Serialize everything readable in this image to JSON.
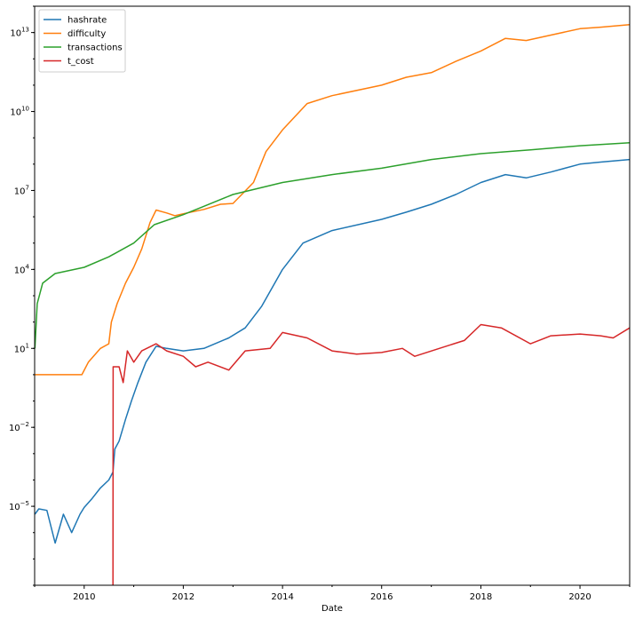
{
  "chart_data": {
    "type": "line",
    "title": "",
    "xlabel": "Date",
    "ylabel": "",
    "y_scale": "log",
    "xlim": [
      "2009-01-01",
      "2021-01-01"
    ],
    "ylim": [
      1e-08,
      100000000000000.0
    ],
    "grid": false,
    "legend_position": "top-left",
    "x_ticks": [
      "2010",
      "2012",
      "2014",
      "2016",
      "2018",
      "2020"
    ],
    "y_ticks": [
      {
        "base": "10",
        "exp": "−5",
        "value": 1e-05
      },
      {
        "base": "10",
        "exp": "−2",
        "value": 0.01
      },
      {
        "base": "10",
        "exp": "1",
        "value": 10
      },
      {
        "base": "10",
        "exp": "4",
        "value": 10000.0
      },
      {
        "base": "10",
        "exp": "7",
        "value": 10000000.0
      },
      {
        "base": "10",
        "exp": "10",
        "value": 10000000000.0
      },
      {
        "base": "10",
        "exp": "13",
        "value": 10000000000000.0
      }
    ],
    "series": [
      {
        "name": "hashrate",
        "color": "#1f77b4",
        "points": [
          [
            "2009-01-03",
            5e-06
          ],
          [
            "2009-02-01",
            8e-06
          ],
          [
            "2009-04-01",
            7e-06
          ],
          [
            "2009-06-01",
            4e-07
          ],
          [
            "2009-08-01",
            5e-06
          ],
          [
            "2009-10-01",
            1e-06
          ],
          [
            "2009-12-01",
            5e-06
          ],
          [
            "2010-01-01",
            9e-06
          ],
          [
            "2010-03-01",
            2e-05
          ],
          [
            "2010-05-01",
            5e-05
          ],
          [
            "2010-07-01",
            0.0001
          ],
          [
            "2010-08-01",
            0.0002
          ],
          [
            "2010-08-15",
            0.0015
          ],
          [
            "2010-09-15",
            0.003
          ],
          [
            "2010-11-01",
            0.02
          ],
          [
            "2010-12-15",
            0.1
          ],
          [
            "2011-02-01",
            0.5
          ],
          [
            "2011-04-01",
            3
          ],
          [
            "2011-06-15",
            12
          ],
          [
            "2011-09-01",
            10
          ],
          [
            "2012-01-01",
            8
          ],
          [
            "2012-06-01",
            10
          ],
          [
            "2012-12-01",
            25
          ],
          [
            "2013-04-01",
            60
          ],
          [
            "2013-08-01",
            400
          ],
          [
            "2014-01-01",
            10000
          ],
          [
            "2014-06-01",
            100000
          ],
          [
            "2015-01-01",
            300000
          ],
          [
            "2016-01-01",
            800000
          ],
          [
            "2016-07-01",
            1500000
          ],
          [
            "2017-01-01",
            3000000
          ],
          [
            "2017-07-01",
            7000000
          ],
          [
            "2018-01-01",
            20000000
          ],
          [
            "2018-07-01",
            40000000
          ],
          [
            "2018-12-01",
            30000000
          ],
          [
            "2019-06-01",
            50000000
          ],
          [
            "2020-01-01",
            100000000
          ],
          [
            "2020-06-01",
            120000000
          ],
          [
            "2021-01-01",
            150000000
          ]
        ]
      },
      {
        "name": "difficulty",
        "color": "#ff7f0e",
        "points": [
          [
            "2009-01-03",
            1
          ],
          [
            "2009-12-15",
            1
          ],
          [
            "2010-02-01",
            3
          ],
          [
            "2010-05-01",
            10
          ],
          [
            "2010-07-01",
            15
          ],
          [
            "2010-07-20",
            100
          ],
          [
            "2010-09-01",
            500
          ],
          [
            "2010-11-01",
            3000
          ],
          [
            "2011-01-01",
            12000
          ],
          [
            "2011-03-01",
            60000
          ],
          [
            "2011-05-01",
            600000
          ],
          [
            "2011-06-15",
            1800000
          ],
          [
            "2011-09-01",
            1400000
          ],
          [
            "2011-11-01",
            1100000
          ],
          [
            "2012-01-01",
            1300000
          ],
          [
            "2012-06-01",
            1900000
          ],
          [
            "2012-10-01",
            3000000
          ],
          [
            "2013-01-01",
            3200000
          ],
          [
            "2013-06-01",
            20000000
          ],
          [
            "2013-09-01",
            300000000
          ],
          [
            "2014-01-01",
            2000000000
          ],
          [
            "2014-07-01",
            20000000000
          ],
          [
            "2015-01-01",
            40000000000
          ],
          [
            "2016-01-01",
            100000000000
          ],
          [
            "2016-07-01",
            200000000000
          ],
          [
            "2017-01-01",
            300000000000
          ],
          [
            "2017-07-01",
            800000000000
          ],
          [
            "2018-01-01",
            2000000000000
          ],
          [
            "2018-07-01",
            6000000000000
          ],
          [
            "2018-12-01",
            5000000000000
          ],
          [
            "2019-06-01",
            8000000000000
          ],
          [
            "2020-01-01",
            14000000000000
          ],
          [
            "2020-06-01",
            16000000000000
          ],
          [
            "2021-01-01",
            20000000000000
          ]
        ]
      },
      {
        "name": "transactions",
        "color": "#2ca02c",
        "points": [
          [
            "2009-01-03",
            10
          ],
          [
            "2009-01-20",
            500
          ],
          [
            "2009-03-01",
            3000
          ],
          [
            "2009-06-01",
            7000
          ],
          [
            "2010-01-01",
            12000
          ],
          [
            "2010-07-01",
            30000
          ],
          [
            "2011-01-01",
            100000
          ],
          [
            "2011-06-01",
            500000
          ],
          [
            "2012-01-01",
            1200000
          ],
          [
            "2012-06-01",
            2500000
          ],
          [
            "2013-01-01",
            7000000
          ],
          [
            "2014-01-01",
            20000000
          ],
          [
            "2015-01-01",
            40000000
          ],
          [
            "2016-01-01",
            70000000
          ],
          [
            "2017-01-01",
            150000000
          ],
          [
            "2018-01-01",
            250000000
          ],
          [
            "2019-01-01",
            350000000
          ],
          [
            "2020-01-01",
            500000000
          ],
          [
            "2021-01-01",
            650000000
          ]
        ]
      },
      {
        "name": "t_cost",
        "color": "#d62728",
        "points": [
          [
            "2010-08-01",
            1e-08
          ],
          [
            "2010-08-02",
            2
          ],
          [
            "2010-09-15",
            2
          ],
          [
            "2010-10-15",
            0.5
          ],
          [
            "2010-11-15",
            8
          ],
          [
            "2011-01-01",
            3
          ],
          [
            "2011-03-01",
            8
          ],
          [
            "2011-06-15",
            15
          ],
          [
            "2011-09-01",
            8
          ],
          [
            "2012-01-01",
            5
          ],
          [
            "2012-04-01",
            2
          ],
          [
            "2012-07-01",
            3
          ],
          [
            "2012-12-01",
            1.5
          ],
          [
            "2013-04-01",
            8
          ],
          [
            "2013-10-01",
            10
          ],
          [
            "2014-01-01",
            40
          ],
          [
            "2014-07-01",
            25
          ],
          [
            "2015-01-01",
            8
          ],
          [
            "2015-07-01",
            6
          ],
          [
            "2016-01-01",
            7
          ],
          [
            "2016-06-01",
            10
          ],
          [
            "2016-09-01",
            5
          ],
          [
            "2017-03-01",
            10
          ],
          [
            "2017-09-01",
            20
          ],
          [
            "2018-01-01",
            80
          ],
          [
            "2018-06-01",
            60
          ],
          [
            "2019-01-01",
            15
          ],
          [
            "2019-06-01",
            30
          ],
          [
            "2020-01-01",
            35
          ],
          [
            "2020-06-01",
            30
          ],
          [
            "2020-09-01",
            25
          ],
          [
            "2021-01-01",
            60
          ]
        ]
      }
    ]
  }
}
